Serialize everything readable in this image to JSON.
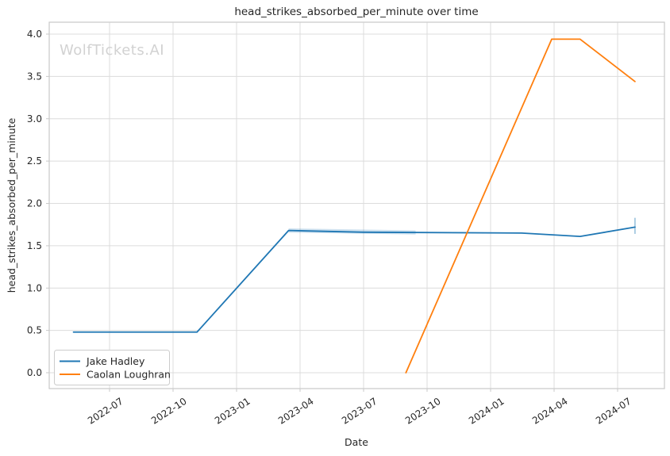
{
  "chart_data": {
    "type": "line",
    "title": "head_strikes_absorbed_per_minute over time",
    "xlabel": "Date",
    "ylabel": "head_strikes_absorbed_per_minute",
    "watermark": "WolfTickets.AI",
    "grid": true,
    "legend_position": "lower-left",
    "x_tick_labels": [
      "2022-07",
      "2022-10",
      "2023-01",
      "2023-04",
      "2023-07",
      "2023-10",
      "2024-01",
      "2024-04",
      "2024-07"
    ],
    "y_tick_labels": [
      "0.0",
      "0.5",
      "1.0",
      "1.5",
      "2.0",
      "2.5",
      "3.0",
      "3.5",
      "4.0"
    ],
    "ylim": [
      -0.19,
      4.14
    ],
    "xlim": [
      "2022-04-05",
      "2024-09-06"
    ],
    "colors": {
      "jake_hadley": "#1f77b4",
      "caolan_loughran": "#ff7f0e",
      "grid": "#dcdcdc",
      "spine": "#c9c9c9",
      "text": "#262626",
      "watermark": "#d2d2d2"
    },
    "series": [
      {
        "name": "Jake Hadley",
        "color": "#1f77b4",
        "points": [
          [
            "2022-05-10",
            0.48
          ],
          [
            "2022-11-05",
            0.48
          ],
          [
            "2023-03-15",
            1.68
          ],
          [
            "2023-07-01",
            1.66
          ],
          [
            "2024-02-15",
            1.65
          ],
          [
            "2024-05-08",
            1.61
          ],
          [
            "2024-07-26",
            1.72
          ]
        ],
        "band": [
          [
            "2023-03-15",
            1.655,
            1.705
          ],
          [
            "2023-09-15",
            1.632,
            1.682
          ]
        ],
        "error_bar": {
          "date": "2024-07-26",
          "low": 1.64,
          "high": 1.83
        }
      },
      {
        "name": "Caolan Loughran",
        "color": "#ff7f0e",
        "points": [
          [
            "2023-09-01",
            0.0
          ],
          [
            "2024-03-28",
            3.94
          ],
          [
            "2024-05-08",
            3.94
          ],
          [
            "2024-07-26",
            3.44
          ]
        ]
      }
    ]
  }
}
